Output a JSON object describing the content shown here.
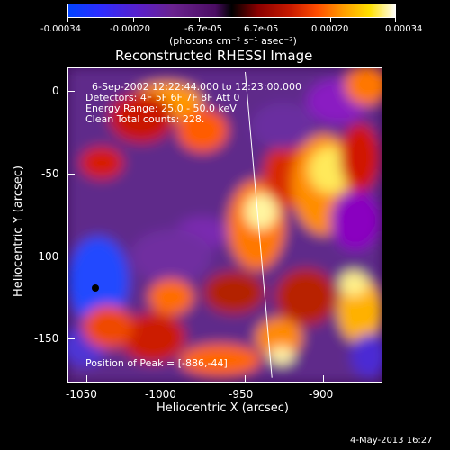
{
  "colorbar": {
    "ticks": [
      "-0.00034",
      "-0.00020",
      "-6.7e-05",
      "6.7e-05",
      "0.00020",
      "0.00034"
    ],
    "unit_label": "(photons cm⁻² s⁻¹ asec⁻²)"
  },
  "title": "Reconstructed RHESSI Image",
  "annotation": {
    "line1": "6-Sep-2002 12:22:44.000 to 12:23:00.000",
    "line2": "Detectors: 4F 5F 6F 7F 8F  Att 0",
    "line3": "Energy Range: 25.0 - 50.0 keV",
    "line4": "Clean    Total counts: 228.",
    "peak": "Position of Peak = [-886,-44]"
  },
  "axes": {
    "ylabel": "Heliocentric Y (arcsec)",
    "xlabel": "Heliocentric X (arcsec)",
    "yticks": [
      "0",
      "-50",
      "-100",
      "-150"
    ],
    "xticks": [
      "-1050",
      "-1000",
      "-950",
      "-900"
    ]
  },
  "footer": {
    "timestamp": "4-May-2013 16:27"
  }
}
